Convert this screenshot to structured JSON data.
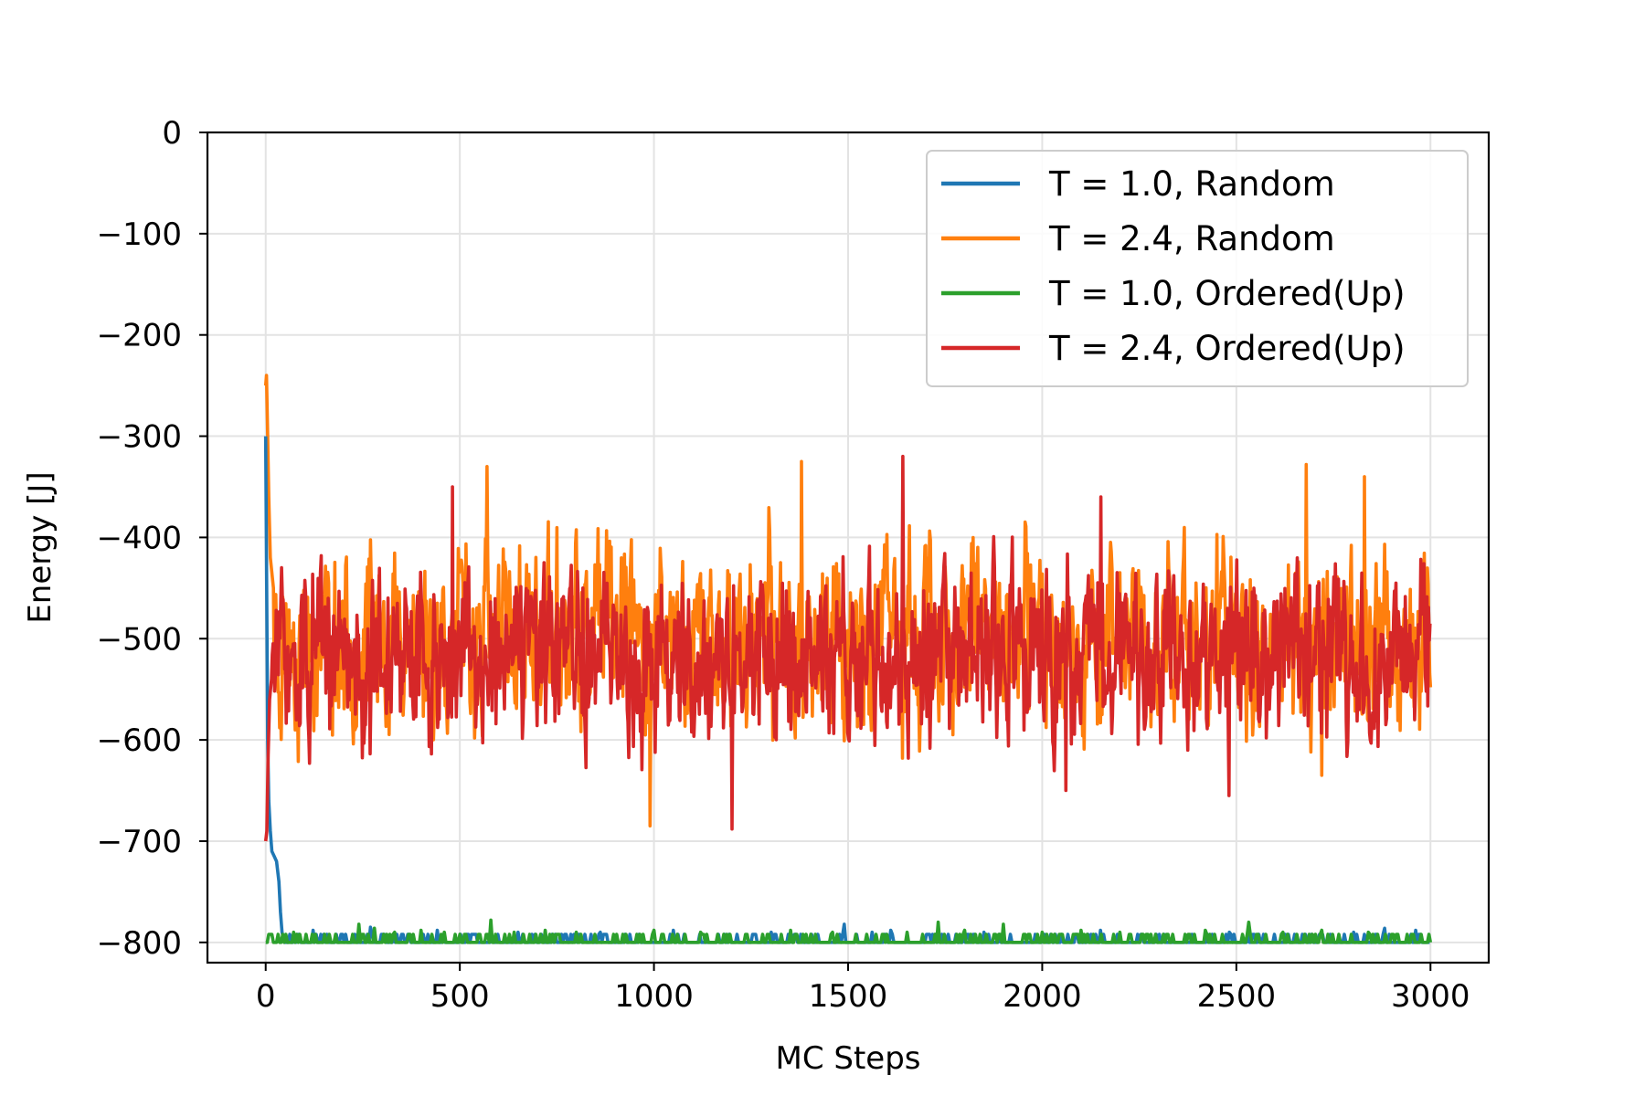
{
  "chart_data": {
    "type": "line",
    "title": "",
    "xlabel": "MC Steps",
    "ylabel": "Energy [J]",
    "xlim": [
      -150,
      3150
    ],
    "ylim": [
      -820,
      0
    ],
    "xticks": [
      0,
      500,
      1000,
      1500,
      2000,
      2500,
      3000
    ],
    "xtick_labels": [
      "0",
      "500",
      "1000",
      "1500",
      "2000",
      "2500",
      "3000"
    ],
    "yticks": [
      0,
      -100,
      -200,
      -300,
      -400,
      -500,
      -600,
      -700,
      -800
    ],
    "ytick_labels": [
      "0",
      "−100",
      "−200",
      "−300",
      "−400",
      "−500",
      "−600",
      "−700",
      "−800"
    ],
    "grid": true,
    "legend_position": "top-right",
    "series": [
      {
        "name": "T = 1.0, Random",
        "color": "#1f77b4",
        "points": [
          [
            0,
            -300
          ],
          [
            2,
            -420
          ],
          [
            5,
            -600
          ],
          [
            8,
            -660
          ],
          [
            12,
            -690
          ],
          [
            16,
            -710
          ],
          [
            22,
            -715
          ],
          [
            28,
            -720
          ],
          [
            34,
            -740
          ],
          [
            38,
            -770
          ],
          [
            42,
            -790
          ],
          [
            48,
            -800
          ]
        ],
        "baseline": -800,
        "spikes": [
          [
            120,
            -788
          ],
          [
            180,
            -792
          ],
          [
            270,
            -785
          ],
          [
            370,
            -792
          ],
          [
            440,
            -788
          ],
          [
            520,
            -792
          ],
          [
            650,
            -790
          ],
          [
            760,
            -792
          ],
          [
            860,
            -790
          ],
          [
            1050,
            -788
          ],
          [
            1180,
            -792
          ],
          [
            1300,
            -790
          ],
          [
            1420,
            -792
          ],
          [
            1490,
            -782
          ],
          [
            1560,
            -790
          ],
          [
            1610,
            -788
          ],
          [
            1700,
            -792
          ],
          [
            1850,
            -790
          ],
          [
            1980,
            -792
          ],
          [
            2150,
            -788
          ],
          [
            2300,
            -792
          ],
          [
            2480,
            -790
          ],
          [
            2650,
            -792
          ],
          [
            2800,
            -790
          ],
          [
            2880,
            -786
          ],
          [
            2960,
            -788
          ]
        ]
      },
      {
        "name": "T = 2.4, Random",
        "color": "#ff7f0e",
        "start": [
          [
            0,
            -250
          ],
          [
            2,
            -240
          ],
          [
            5,
            -300
          ],
          [
            8,
            -360
          ],
          [
            12,
            -420
          ],
          [
            20,
            -450
          ]
        ],
        "mean": -500,
        "spread": 55,
        "peaks": [
          [
            570,
            -330
          ],
          [
            1380,
            -325
          ],
          [
            2680,
            -328
          ],
          [
            2830,
            -340
          ]
        ],
        "troughs": [
          [
            990,
            -685
          ],
          [
            1640,
            -618
          ],
          [
            2720,
            -635
          ]
        ]
      },
      {
        "name": "T = 1.0, Ordered(Up)",
        "color": "#2ca02c",
        "baseline": -800,
        "spikes": [
          [
            30,
            -792
          ],
          [
            70,
            -790
          ],
          [
            150,
            -792
          ],
          [
            240,
            -782
          ],
          [
            280,
            -786
          ],
          [
            330,
            -790
          ],
          [
            400,
            -788
          ],
          [
            460,
            -790
          ],
          [
            580,
            -778
          ],
          [
            640,
            -790
          ],
          [
            720,
            -788
          ],
          [
            800,
            -790
          ],
          [
            920,
            -792
          ],
          [
            1000,
            -788
          ],
          [
            1120,
            -790
          ],
          [
            1240,
            -792
          ],
          [
            1350,
            -788
          ],
          [
            1460,
            -790
          ],
          [
            1570,
            -792
          ],
          [
            1650,
            -790
          ],
          [
            1730,
            -780
          ],
          [
            1800,
            -788
          ],
          [
            1900,
            -782
          ],
          [
            2000,
            -790
          ],
          [
            2100,
            -788
          ],
          [
            2200,
            -790
          ],
          [
            2310,
            -792
          ],
          [
            2420,
            -788
          ],
          [
            2530,
            -780
          ],
          [
            2620,
            -790
          ],
          [
            2720,
            -788
          ],
          [
            2840,
            -790
          ],
          [
            2950,
            -792
          ]
        ]
      },
      {
        "name": "T = 2.4, Ordered(Up)",
        "color": "#d62728",
        "start": [
          [
            0,
            -700
          ],
          [
            3,
            -690
          ],
          [
            6,
            -620
          ],
          [
            10,
            -560
          ],
          [
            15,
            -540
          ]
        ],
        "mean": -520,
        "spread": 52,
        "peaks": [
          [
            480,
            -350
          ],
          [
            1640,
            -320
          ],
          [
            2150,
            -360
          ]
        ],
        "troughs": [
          [
            1200,
            -688
          ],
          [
            2060,
            -650
          ],
          [
            2480,
            -655
          ]
        ]
      }
    ]
  }
}
